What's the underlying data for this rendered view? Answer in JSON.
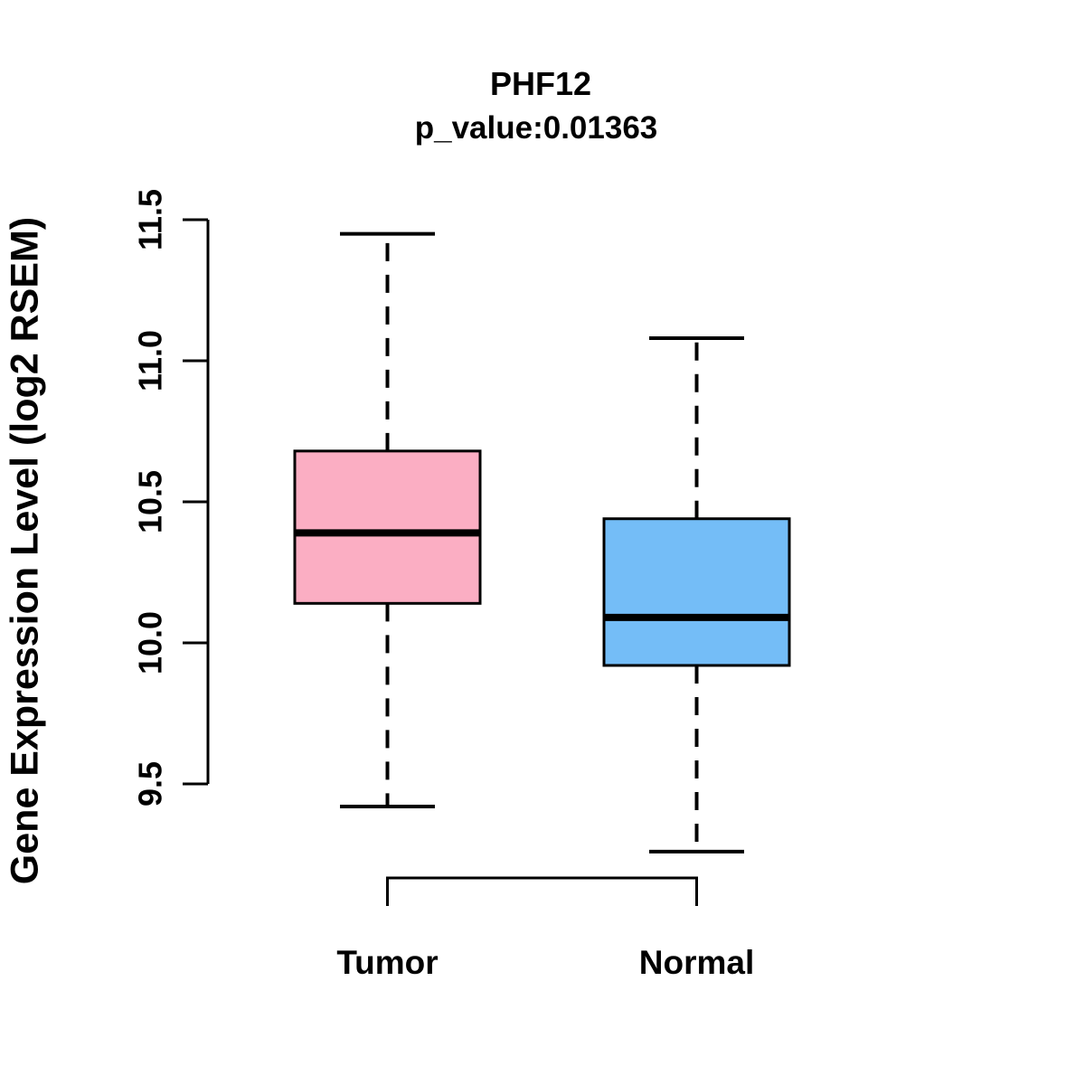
{
  "chart_data": {
    "type": "boxplot",
    "title": "PHF12",
    "subtitle": "p_value:0.01363",
    "p_value": 0.01363,
    "ylabel": "Gene Expression Level (log2 RSEM)",
    "xlabel": "",
    "ylim": [
      9.5,
      11.5
    ],
    "yticks": [
      9.5,
      10.0,
      10.5,
      11.0,
      11.5
    ],
    "ytick_labels": [
      "9.5",
      "10.0",
      "10.5",
      "11.0",
      "11.5"
    ],
    "categories": [
      "Tumor",
      "Normal"
    ],
    "series": [
      {
        "name": "Tumor",
        "fill_color": "#FBAEC3",
        "whisker_low": 9.42,
        "q1": 10.14,
        "median": 10.39,
        "q3": 10.68,
        "whisker_high": 11.45
      },
      {
        "name": "Normal",
        "fill_color": "#74BDF7",
        "whisker_low": 9.26,
        "q1": 9.92,
        "median": 10.09,
        "q3": 10.44,
        "whisker_high": 11.08
      }
    ],
    "styles": {
      "line_color": "#000000",
      "text_color": "#000000",
      "background": "#FFFFFF",
      "whisker_linetype": "dashed",
      "bold_text": true
    },
    "layout_hints": {
      "grid": false,
      "legend": "none",
      "y_axis_side": "left",
      "tick_label_rotation": -90,
      "bottom_bracket_connects_groups": true
    }
  }
}
